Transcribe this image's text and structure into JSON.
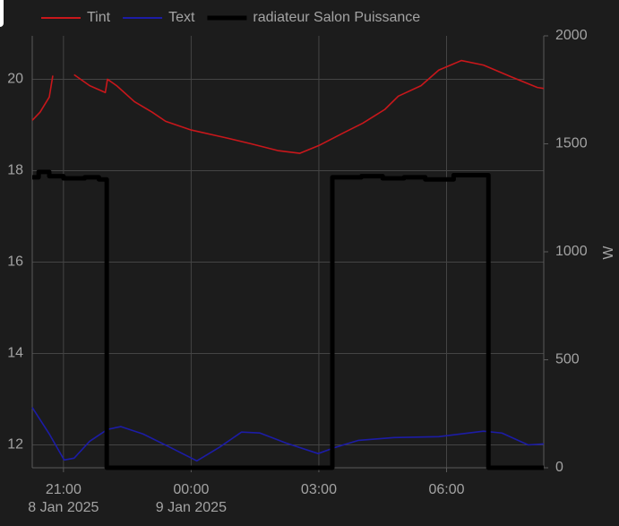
{
  "chart_data": {
    "type": "line",
    "y2label": "W",
    "xlim": [
      "2025-01-08T20:16",
      "2025-01-09T08:17"
    ],
    "xticks": [
      {
        "value": "2025-01-08T21:00",
        "label": "21:00"
      },
      {
        "value": "2025-01-09T00:00",
        "label": "00:00"
      },
      {
        "value": "2025-01-09T03:00",
        "label": "03:00"
      },
      {
        "value": "2025-01-09T06:00",
        "label": "06:00"
      }
    ],
    "xtick_dates": [
      {
        "value": "2025-01-08T21:00",
        "label": "8 Jan 2025"
      },
      {
        "value": "2025-01-09T00:00",
        "label": "9 Jan 2025"
      }
    ],
    "ylim": [
      11.5,
      20.95
    ],
    "yticks": [
      12,
      14,
      16,
      18,
      20
    ],
    "y2lim": [
      0,
      2000
    ],
    "y2ticks": [
      0,
      500,
      1000,
      1500,
      2000
    ],
    "grid": true,
    "legend": "top",
    "series": [
      {
        "name": "Tint",
        "color": "#c8171b",
        "x": [
          "2025-01-08T20:16",
          "2025-01-08T20:27",
          "2025-01-08T20:40",
          "2025-01-08T20:45",
          "2025-01-08T21:00",
          "2025-01-08T21:15",
          "2025-01-08T21:37",
          "2025-01-08T21:59",
          "2025-01-08T22:02",
          "2025-01-08T22:15",
          "2025-01-08T22:40",
          "2025-01-08T23:05",
          "2025-01-08T23:24",
          "2025-01-09T00:00",
          "2025-01-09T00:46",
          "2025-01-09T01:24",
          "2025-01-09T02:02",
          "2025-01-09T02:33",
          "2025-01-09T03:00",
          "2025-01-09T03:30",
          "2025-01-09T04:02",
          "2025-01-09T04:33",
          "2025-01-09T04:52",
          "2025-01-09T05:24",
          "2025-01-09T05:49",
          "2025-01-09T06:21",
          "2025-01-09T06:52",
          "2025-01-09T07:30",
          "2025-01-09T08:08",
          "2025-01-09T08:17"
        ],
        "values": [
          19.1,
          19.28,
          19.61,
          20.08,
          null,
          20.1,
          19.86,
          19.71,
          20.0,
          19.86,
          19.51,
          19.28,
          19.08,
          18.89,
          18.73,
          18.59,
          18.44,
          18.38,
          18.55,
          18.79,
          19.04,
          19.34,
          19.63,
          19.86,
          20.2,
          20.41,
          20.31,
          20.06,
          19.82,
          19.8
        ]
      },
      {
        "name": "Text",
        "color": "#1c1ca6",
        "x": [
          "2025-01-08T20:16",
          "2025-01-08T20:40",
          "2025-01-08T21:01",
          "2025-01-08T21:15",
          "2025-01-08T21:37",
          "2025-01-08T22:02",
          "2025-01-08T22:21",
          "2025-01-08T22:52",
          "2025-01-08T23:30",
          "2025-01-09T00:08",
          "2025-01-09T00:40",
          "2025-01-09T01:11",
          "2025-01-09T01:37",
          "2025-01-09T02:14",
          "2025-01-09T02:59",
          "2025-01-09T03:24",
          "2025-01-09T03:56",
          "2025-01-09T04:46",
          "2025-01-09T05:49",
          "2025-01-09T06:52",
          "2025-01-09T07:18",
          "2025-01-09T07:55",
          "2025-01-09T08:17"
        ],
        "values": [
          12.82,
          12.24,
          11.67,
          11.71,
          12.08,
          12.34,
          12.4,
          12.24,
          11.95,
          11.65,
          11.95,
          12.28,
          12.26,
          12.04,
          11.81,
          11.95,
          12.1,
          12.16,
          12.18,
          12.3,
          12.26,
          12.0,
          12.02
        ]
      },
      {
        "name": "radiateur Salon Puissance",
        "color": "#000000",
        "axis": "y2",
        "line_shape": "step",
        "x": [
          "2025-01-08T20:16",
          "2025-01-08T20:25",
          "2025-01-08T20:40",
          "2025-01-08T21:00",
          "2025-01-08T21:30",
          "2025-01-08T21:50",
          "2025-01-08T22:01",
          "2025-01-09T03:19",
          "2025-01-09T04:00",
          "2025-01-09T04:30",
          "2025-01-09T05:00",
          "2025-01-09T05:30",
          "2025-01-09T06:10",
          "2025-01-09T06:59",
          "2025-01-09T08:17"
        ],
        "values": [
          1345,
          1370,
          1350,
          1340,
          1345,
          1335,
          0,
          1345,
          1350,
          1340,
          1345,
          1335,
          1355,
          0,
          0
        ]
      }
    ]
  }
}
